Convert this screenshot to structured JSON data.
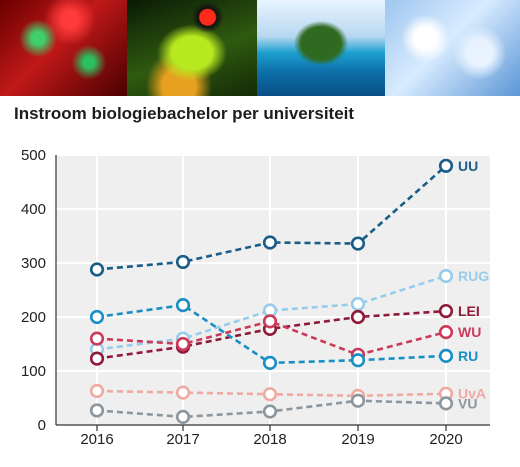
{
  "banner": {
    "images": [
      "cells-photo",
      "frog-photo",
      "island-photo",
      "lab-glassware-photo"
    ]
  },
  "chart_data": {
    "type": "line",
    "title": "Instroom biologiebachelor per universiteit",
    "xlabel": "",
    "ylabel": "",
    "x": [
      "2016",
      "2017",
      "2018",
      "2019",
      "2020"
    ],
    "ylim": [
      0,
      500
    ],
    "yticks": [
      "0",
      "100",
      "200",
      "300",
      "400",
      "500"
    ],
    "grid": true,
    "legend": "end-labels",
    "series": [
      {
        "name": "UU",
        "color": "#1a5d88",
        "values": [
          288,
          302,
          338,
          336,
          480
        ]
      },
      {
        "name": "RUG",
        "color": "#97ccec",
        "values": [
          140,
          160,
          212,
          224,
          276
        ]
      },
      {
        "name": "LEI",
        "color": "#8f1a3a",
        "values": [
          123,
          145,
          178,
          200,
          211
        ]
      },
      {
        "name": "WU",
        "color": "#cc3a5a",
        "values": [
          160,
          150,
          192,
          130,
          172
        ]
      },
      {
        "name": "RU",
        "color": "#1a8fc6",
        "values": [
          200,
          222,
          115,
          120,
          128
        ]
      },
      {
        "name": "UvA",
        "color": "#efaaa2",
        "values": [
          63,
          60,
          57,
          54,
          58
        ]
      },
      {
        "name": "VU",
        "color": "#8c969e",
        "values": [
          27,
          15,
          25,
          45,
          40
        ]
      }
    ]
  }
}
